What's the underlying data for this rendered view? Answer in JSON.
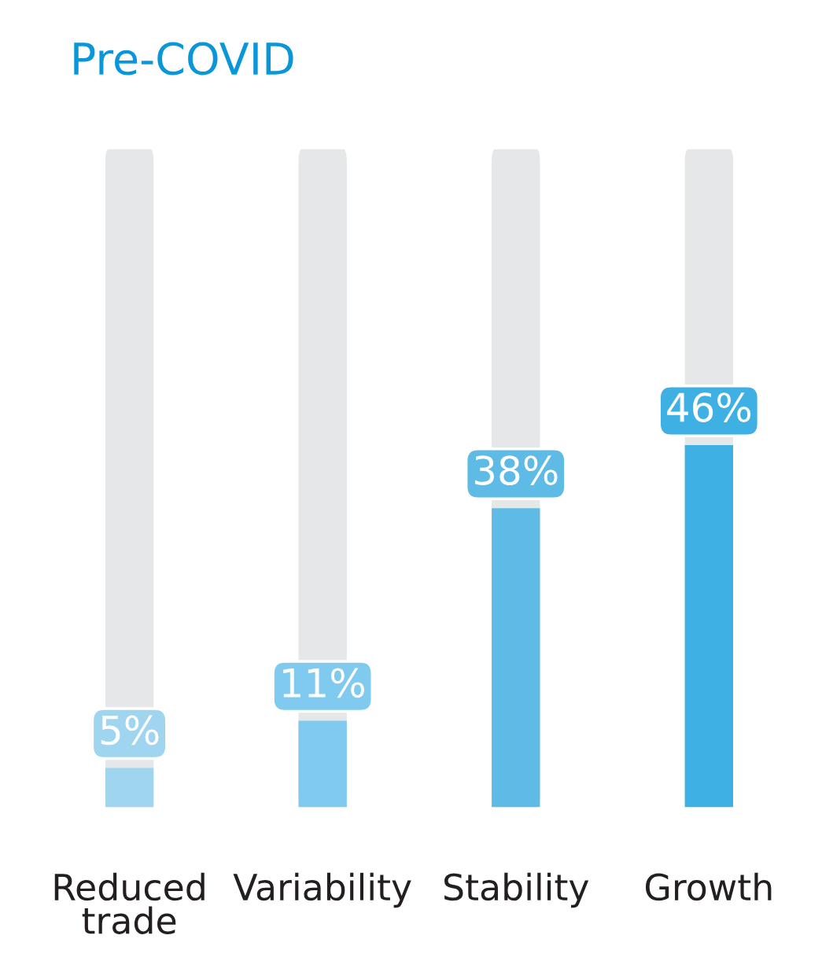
{
  "chart_data": {
    "type": "bar",
    "title": "Pre-COVID",
    "categories": [
      "Reduced\ntrade",
      "Variability",
      "Stability",
      "Growth"
    ],
    "values": [
      5,
      11,
      38,
      46
    ],
    "colors": [
      "#a0d5ef",
      "#7fcaee",
      "#5dbbe6",
      "#3fb0e3"
    ],
    "value_labels": [
      "5%",
      "11%",
      "38%",
      "46%"
    ],
    "tick_labels": "x",
    "grid": false,
    "legend": false
  }
}
